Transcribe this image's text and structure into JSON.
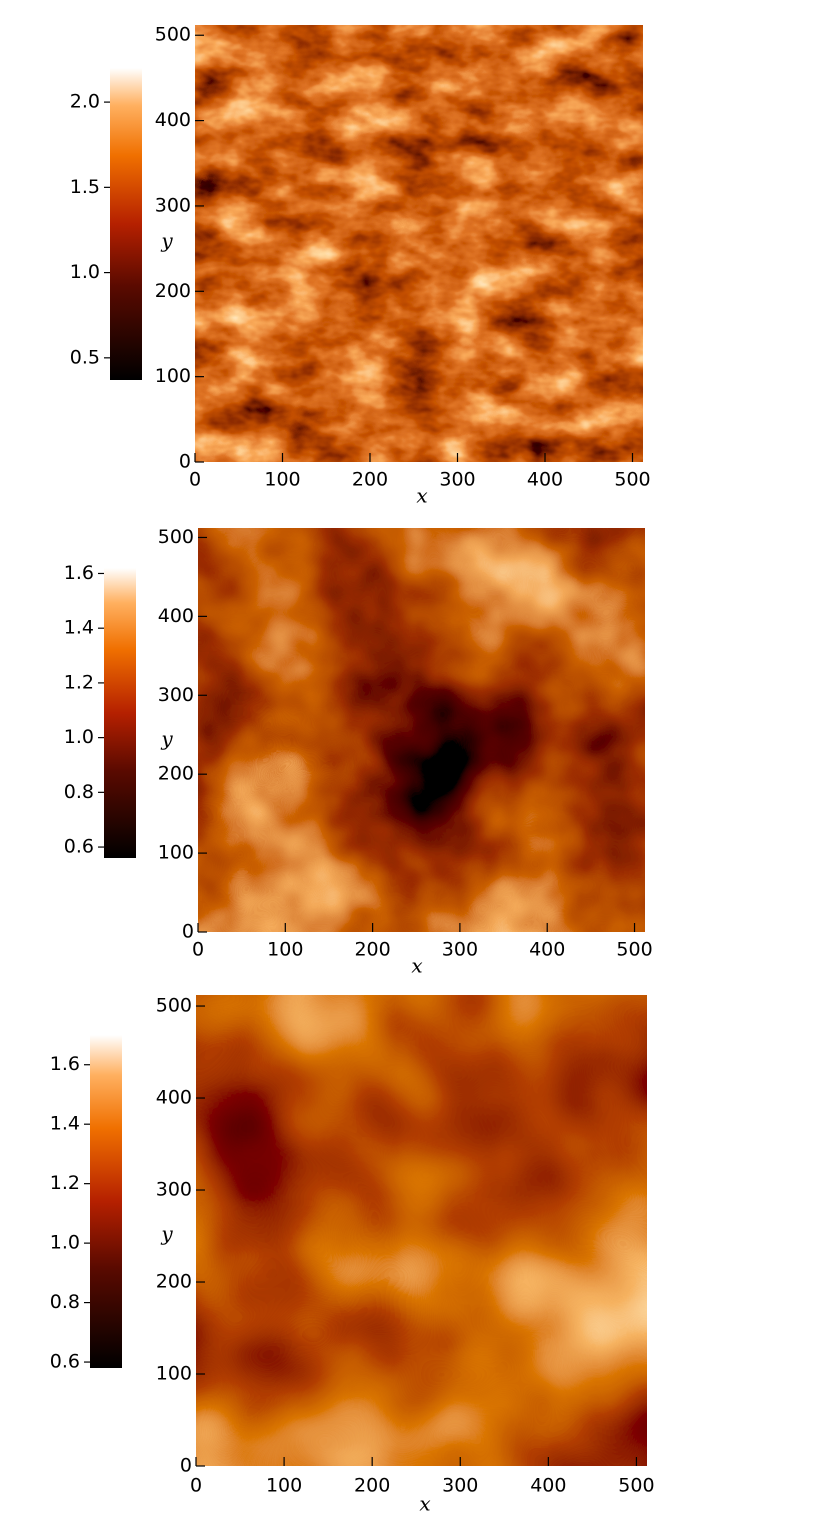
{
  "chart_data": [
    {
      "type": "heatmap",
      "xlabel": "x",
      "ylabel": "y",
      "xlim": [
        0,
        512
      ],
      "ylim": [
        0,
        512
      ],
      "xticks": [
        0,
        100,
        200,
        300,
        400,
        500
      ],
      "yticks": [
        0,
        100,
        200,
        300,
        400,
        500
      ],
      "colorbar": {
        "lim": [
          0.37,
          2.2
        ],
        "ticks": [
          0.5,
          {
            "value": 1,
            "label": "1.0"
          },
          1.5,
          {
            "value": 2,
            "label": "2.0"
          }
        ]
      }
    },
    {
      "type": "heatmap",
      "xlabel": "x",
      "ylabel": "y",
      "xlim": [
        0,
        512
      ],
      "ylim": [
        0,
        512
      ],
      "xticks": [
        0,
        100,
        200,
        300,
        400,
        500
      ],
      "yticks": [
        0,
        100,
        200,
        300,
        400,
        500
      ],
      "colorbar": {
        "lim": [
          0.56,
          1.62
        ],
        "ticks": [
          0.6,
          0.8,
          {
            "value": 1,
            "label": "1.0"
          },
          1.2,
          1.4,
          1.6
        ]
      }
    },
    {
      "type": "heatmap",
      "xlabel": "x",
      "ylabel": "y",
      "xlim": [
        0,
        512
      ],
      "ylim": [
        0,
        512
      ],
      "xticks": [
        0,
        100,
        200,
        300,
        400,
        500
      ],
      "yticks": [
        0,
        100,
        200,
        300,
        400,
        500
      ],
      "colorbar": {
        "lim": [
          0.58,
          1.7
        ],
        "ticks": [
          0.6,
          0.8,
          {
            "value": 1,
            "label": "1.0"
          },
          1.2,
          1.4,
          1.6
        ]
      }
    }
  ]
}
